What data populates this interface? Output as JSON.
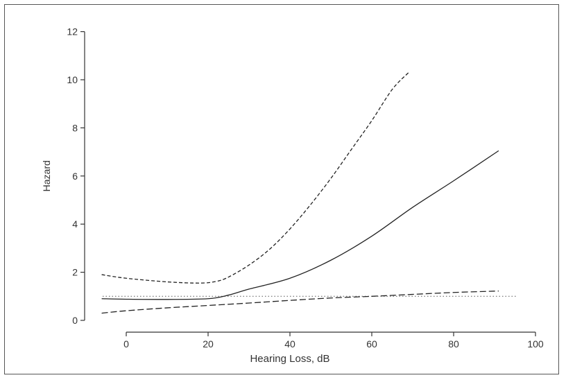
{
  "chart_data": {
    "type": "line",
    "title": "",
    "xlabel": "Hearing Loss, dB",
    "ylabel": "Hazard",
    "xlim": [
      -10,
      100
    ],
    "ylim": [
      0,
      12
    ],
    "x_ticks": [
      0,
      20,
      40,
      60,
      80,
      100
    ],
    "y_ticks": [
      0,
      2,
      4,
      6,
      8,
      10,
      12
    ],
    "grid": false,
    "legend": "none",
    "reference_line": {
      "y": 1,
      "style": "dotted"
    },
    "series": [
      {
        "style": "solid",
        "color": "#222222",
        "x": [
          -6,
          0,
          10,
          20,
          25,
          30,
          40,
          50,
          60,
          70,
          80,
          91
        ],
        "y": [
          0.9,
          0.88,
          0.87,
          0.9,
          1.05,
          1.3,
          1.75,
          2.5,
          3.5,
          4.7,
          5.8,
          7.05
        ]
      },
      {
        "style": "dashed-upper",
        "color": "#222222",
        "x": [
          -6,
          0,
          10,
          18,
          22,
          25,
          30,
          35,
          40,
          45,
          50,
          55,
          60,
          65,
          69
        ],
        "y": [
          1.9,
          1.75,
          1.6,
          1.55,
          1.62,
          1.8,
          2.3,
          2.95,
          3.8,
          4.8,
          5.9,
          7.1,
          8.3,
          9.6,
          10.3
        ]
      },
      {
        "style": "dashed-lower",
        "color": "#222222",
        "x": [
          -6,
          0,
          10,
          20,
          30,
          40,
          50,
          60,
          70,
          80,
          91
        ],
        "y": [
          0.3,
          0.4,
          0.52,
          0.62,
          0.72,
          0.83,
          0.93,
          1.0,
          1.08,
          1.16,
          1.22
        ]
      }
    ]
  }
}
